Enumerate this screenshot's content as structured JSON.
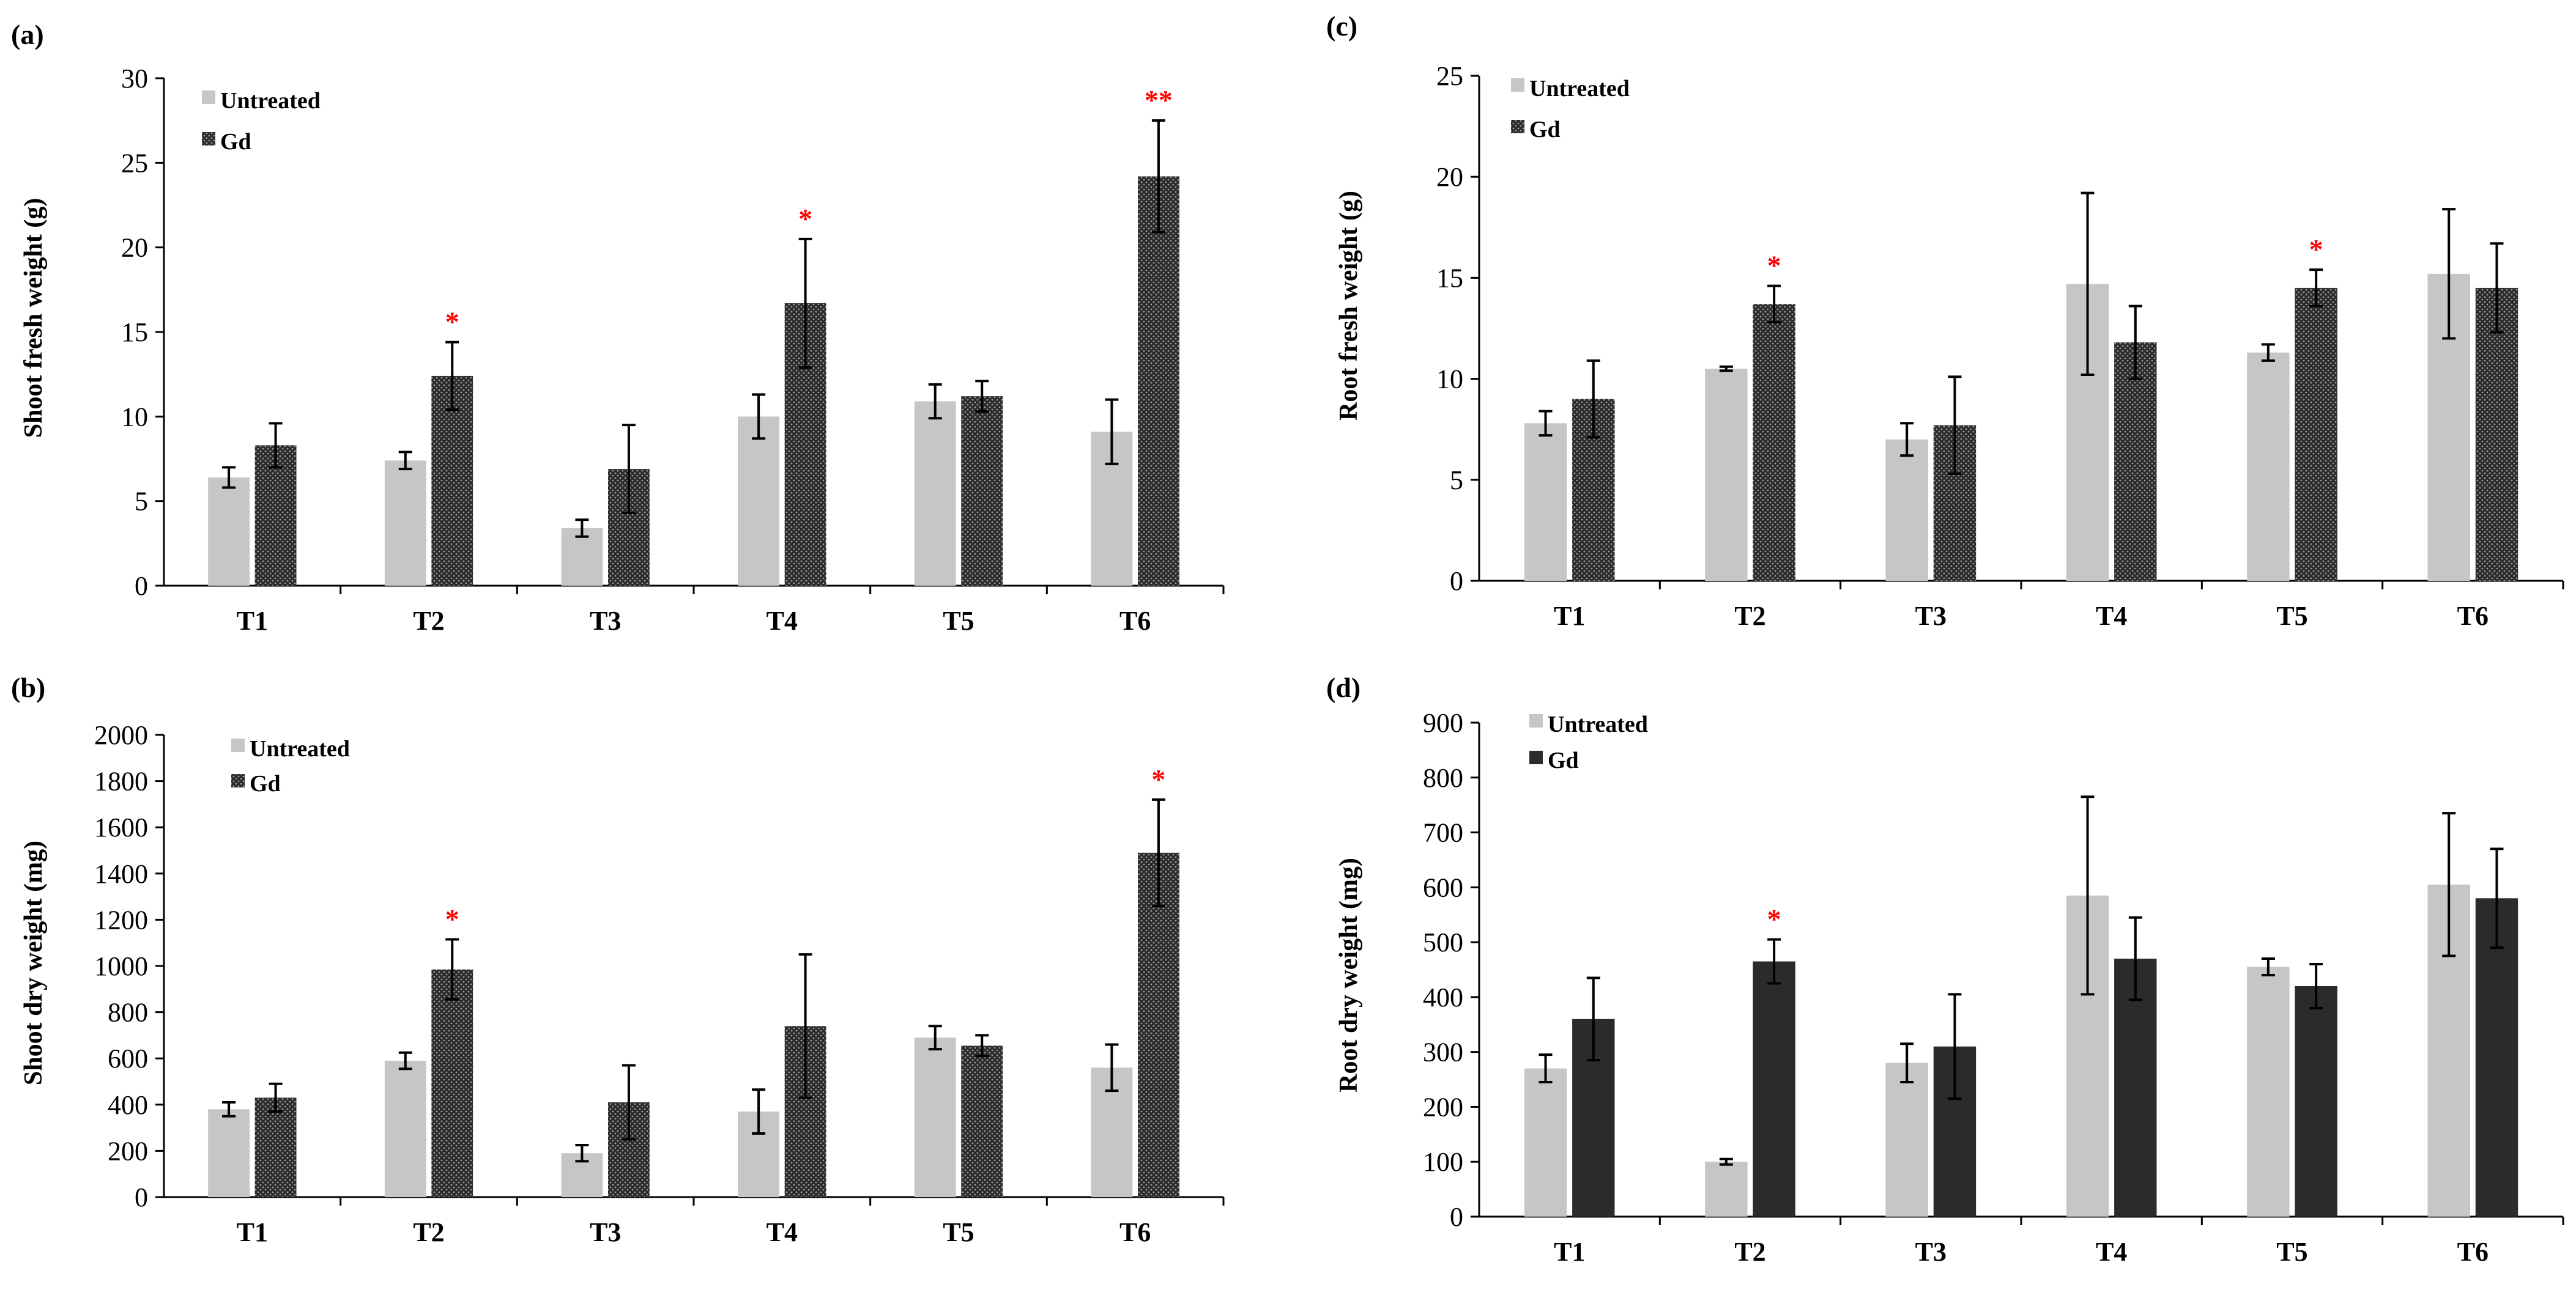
{
  "colors": {
    "untreated": "#c6c6c6",
    "gd_bg": "#2b2b2b",
    "gd_dot": "#9a9a9a",
    "axis": "#000000",
    "significance": "#ff0000"
  },
  "legend": {
    "untreated": "Untreated",
    "gd": "Gd"
  },
  "chart_data": [
    {
      "panel": "(a)",
      "type": "bar",
      "ylabel": "Shoot fresh weight (g)",
      "xlabel": "",
      "ylim": [
        0,
        30
      ],
      "yticks": [
        0,
        5,
        10,
        15,
        20,
        25,
        30
      ],
      "categories": [
        "T1",
        "T2",
        "T3",
        "T4",
        "T5",
        "T6"
      ],
      "series": [
        {
          "name": "Untreated",
          "values": [
            6.4,
            7.4,
            3.4,
            10.0,
            10.9,
            9.1
          ],
          "errors": [
            0.6,
            0.5,
            0.5,
            1.3,
            1.0,
            1.9
          ]
        },
        {
          "name": "Gd",
          "values": [
            8.3,
            12.4,
            6.9,
            16.7,
            11.2,
            24.2
          ],
          "errors": [
            1.3,
            2.0,
            2.6,
            3.8,
            0.9,
            3.3
          ]
        }
      ],
      "significance": [
        "",
        "*",
        "",
        "*",
        "",
        "**"
      ],
      "legend_position": "top-left"
    },
    {
      "panel": "(b)",
      "type": "bar",
      "ylabel": "Shoot dry weight (mg)",
      "xlabel": "",
      "ylim": [
        0,
        2000
      ],
      "yticks": [
        0,
        200,
        400,
        600,
        800,
        1000,
        1200,
        1400,
        1600,
        1800,
        2000
      ],
      "categories": [
        "T1",
        "T2",
        "T3",
        "T4",
        "T5",
        "T6"
      ],
      "series": [
        {
          "name": "Untreated",
          "values": [
            380,
            590,
            190,
            370,
            690,
            560
          ],
          "errors": [
            30,
            35,
            35,
            95,
            50,
            100
          ]
        },
        {
          "name": "Gd",
          "values": [
            430,
            985,
            410,
            740,
            655,
            1490
          ],
          "errors": [
            60,
            130,
            160,
            310,
            45,
            230
          ]
        }
      ],
      "significance": [
        "",
        "*",
        "",
        "",
        "",
        "*"
      ],
      "legend_position": "top-left"
    },
    {
      "panel": "(c)",
      "type": "bar",
      "ylabel": "Root fresh weight (g)",
      "xlabel": "",
      "ylim": [
        0,
        25
      ],
      "yticks": [
        0,
        5,
        10,
        15,
        20,
        25
      ],
      "categories": [
        "T1",
        "T2",
        "T3",
        "T4",
        "T5",
        "T6"
      ],
      "series": [
        {
          "name": "Untreated",
          "values": [
            7.8,
            10.5,
            7.0,
            14.7,
            11.3,
            15.2
          ],
          "errors": [
            0.6,
            0.1,
            0.8,
            4.5,
            0.4,
            3.2
          ]
        },
        {
          "name": "Gd",
          "values": [
            9.0,
            13.7,
            7.7,
            11.8,
            14.5,
            14.5
          ],
          "errors": [
            1.9,
            0.9,
            2.4,
            1.8,
            0.9,
            2.2
          ]
        }
      ],
      "significance": [
        "",
        "*",
        "",
        "",
        "*",
        ""
      ],
      "legend_position": "top-left"
    },
    {
      "panel": "(d)",
      "type": "bar",
      "ylabel": "Root dry weight (mg)",
      "xlabel": "",
      "ylim": [
        0,
        900
      ],
      "yticks": [
        0,
        100,
        200,
        300,
        400,
        500,
        600,
        700,
        800,
        900
      ],
      "categories": [
        "T1",
        "T2",
        "T3",
        "T4",
        "T5",
        "T6"
      ],
      "series": [
        {
          "name": "Untreated",
          "values": [
            270,
            100,
            280,
            585,
            455,
            605
          ],
          "errors": [
            25,
            5,
            35,
            180,
            15,
            130
          ]
        },
        {
          "name": "Gd",
          "values": [
            360,
            465,
            310,
            470,
            420,
            580
          ],
          "errors": [
            75,
            40,
            95,
            75,
            40,
            90
          ]
        }
      ],
      "significance": [
        "",
        "*",
        "",
        "",
        "",
        ""
      ],
      "legend_position": "top-left"
    }
  ]
}
